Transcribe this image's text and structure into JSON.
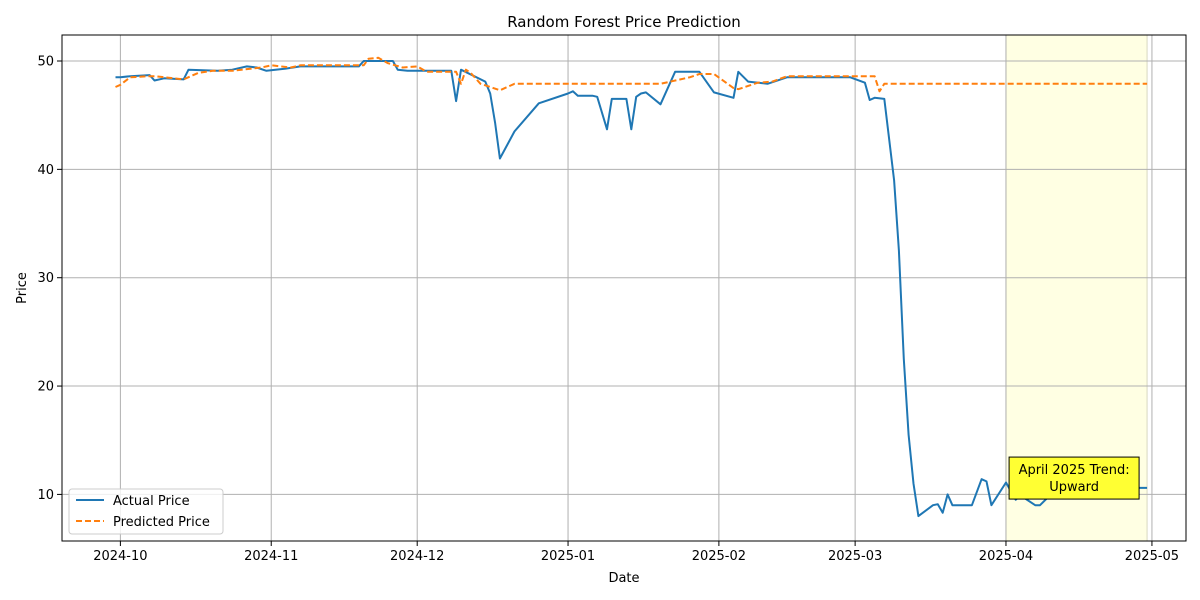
{
  "chart_data": {
    "type": "line",
    "title": "Random Forest Price Prediction",
    "xlabel": "Date",
    "ylabel": "Price",
    "xlim": [
      "2024-09-19",
      "2025-05-08"
    ],
    "ylim": [
      5.7,
      52.4
    ],
    "grid": true,
    "legend_position": "lower-left",
    "x_ticks": [
      "2024-10-01",
      "2024-11-01",
      "2024-12-01",
      "2025-01-01",
      "2025-02-01",
      "2025-03-01",
      "2025-04-01",
      "2025-05-01"
    ],
    "x_tick_labels": [
      "2024-10",
      "2024-11",
      "2024-12",
      "2025-01",
      "2025-02",
      "2025-03",
      "2025-04",
      "2025-05"
    ],
    "y_ticks": [
      10,
      20,
      30,
      40,
      50
    ],
    "y_tick_labels": [
      "10",
      "20",
      "30",
      "40",
      "50"
    ],
    "highlight": {
      "start": "2025-04-01",
      "end": "2025-04-30",
      "color": "#ffffe0"
    },
    "annotation": {
      "lines": [
        "April 2025 Trend:",
        "Upward"
      ],
      "date": "2025-04-15",
      "y": 11.6,
      "bg": "#ffff33"
    },
    "series": [
      {
        "name": "Actual Price",
        "color": "#1f77b4",
        "dash": "solid",
        "points": [
          [
            "2024-09-30",
            48.5
          ],
          [
            "2024-10-01",
            48.5
          ],
          [
            "2024-10-03",
            48.6
          ],
          [
            "2024-10-07",
            48.7
          ],
          [
            "2024-10-08",
            48.2
          ],
          [
            "2024-10-10",
            48.4
          ],
          [
            "2024-10-14",
            48.3
          ],
          [
            "2024-10-15",
            49.2
          ],
          [
            "2024-10-21",
            49.1
          ],
          [
            "2024-10-24",
            49.2
          ],
          [
            "2024-10-27",
            49.5
          ],
          [
            "2024-10-29",
            49.4
          ],
          [
            "2024-10-31",
            49.1
          ],
          [
            "2024-11-04",
            49.3
          ],
          [
            "2024-11-07",
            49.5
          ],
          [
            "2024-11-19",
            49.5
          ],
          [
            "2024-11-20",
            50.0
          ],
          [
            "2024-11-26",
            50.0
          ],
          [
            "2024-11-27",
            49.2
          ],
          [
            "2024-11-29",
            49.1
          ],
          [
            "2024-12-08",
            49.1
          ],
          [
            "2024-12-09",
            46.3
          ],
          [
            "2024-12-10",
            49.2
          ],
          [
            "2024-12-15",
            48.1
          ],
          [
            "2024-12-16",
            47.0
          ],
          [
            "2024-12-17",
            44.3
          ],
          [
            "2024-12-18",
            41.0
          ],
          [
            "2024-12-21",
            43.5
          ],
          [
            "2024-12-26",
            46.1
          ],
          [
            "2025-01-01",
            47.0
          ],
          [
            "2025-01-02",
            47.2
          ],
          [
            "2025-01-03",
            46.8
          ],
          [
            "2025-01-06",
            46.8
          ],
          [
            "2025-01-07",
            46.7
          ],
          [
            "2025-01-09",
            43.7
          ],
          [
            "2025-01-10",
            46.5
          ],
          [
            "2025-01-13",
            46.5
          ],
          [
            "2025-01-14",
            43.7
          ],
          [
            "2025-01-15",
            46.7
          ],
          [
            "2025-01-16",
            47.0
          ],
          [
            "2025-01-17",
            47.1
          ],
          [
            "2025-01-20",
            46.0
          ],
          [
            "2025-01-23",
            49.0
          ],
          [
            "2025-01-28",
            49.0
          ],
          [
            "2025-01-31",
            47.1
          ],
          [
            "2025-02-04",
            46.6
          ],
          [
            "2025-02-05",
            49.0
          ],
          [
            "2025-02-07",
            48.1
          ],
          [
            "2025-02-11",
            47.9
          ],
          [
            "2025-02-15",
            48.5
          ],
          [
            "2025-02-21",
            48.5
          ],
          [
            "2025-02-28",
            48.5
          ],
          [
            "2025-03-03",
            48.0
          ],
          [
            "2025-03-04",
            46.4
          ],
          [
            "2025-03-05",
            46.6
          ],
          [
            "2025-03-07",
            46.5
          ],
          [
            "2025-03-09",
            39.0
          ],
          [
            "2025-03-10",
            32.5
          ],
          [
            "2025-03-11",
            22.5
          ],
          [
            "2025-03-12",
            15.5
          ],
          [
            "2025-03-13",
            11.0
          ],
          [
            "2025-03-14",
            8.0
          ],
          [
            "2025-03-17",
            9.0
          ],
          [
            "2025-03-18",
            9.1
          ],
          [
            "2025-03-19",
            8.3
          ],
          [
            "2025-03-20",
            10.0
          ],
          [
            "2025-03-21",
            9.0
          ],
          [
            "2025-03-25",
            9.0
          ],
          [
            "2025-03-27",
            11.4
          ],
          [
            "2025-03-28",
            11.2
          ],
          [
            "2025-03-29",
            9.0
          ],
          [
            "2025-04-01",
            11.1
          ],
          [
            "2025-04-03",
            9.5
          ],
          [
            "2025-04-04",
            9.9
          ],
          [
            "2025-04-07",
            9.0
          ],
          [
            "2025-04-08",
            9.0
          ],
          [
            "2025-04-10",
            9.9
          ],
          [
            "2025-04-11",
            11.0
          ],
          [
            "2025-04-14",
            11.2
          ],
          [
            "2025-04-15",
            10.6
          ],
          [
            "2025-04-16",
            10.0
          ],
          [
            "2025-04-19",
            10.5
          ],
          [
            "2025-04-22",
            11.0
          ],
          [
            "2025-04-24",
            11.0
          ],
          [
            "2025-04-25",
            10.6
          ],
          [
            "2025-04-29",
            10.6
          ],
          [
            "2025-04-30",
            10.6
          ]
        ]
      },
      {
        "name": "Predicted Price",
        "color": "#ff7f0e",
        "dash": "dashed",
        "points": [
          [
            "2024-09-30",
            47.6
          ],
          [
            "2024-10-01",
            47.8
          ],
          [
            "2024-10-03",
            48.5
          ],
          [
            "2024-10-07",
            48.6
          ],
          [
            "2024-10-08",
            48.6
          ],
          [
            "2024-10-14",
            48.3
          ],
          [
            "2024-10-17",
            48.9
          ],
          [
            "2024-10-20",
            49.1
          ],
          [
            "2024-10-24",
            49.1
          ],
          [
            "2024-10-30",
            49.4
          ],
          [
            "2024-11-01",
            49.6
          ],
          [
            "2024-11-05",
            49.4
          ],
          [
            "2024-11-07",
            49.6
          ],
          [
            "2024-11-19",
            49.6
          ],
          [
            "2024-11-20",
            49.6
          ],
          [
            "2024-11-21",
            50.2
          ],
          [
            "2024-11-23",
            50.3
          ],
          [
            "2024-11-25",
            49.8
          ],
          [
            "2024-11-28",
            49.4
          ],
          [
            "2024-12-01",
            49.5
          ],
          [
            "2024-12-03",
            49.0
          ],
          [
            "2024-12-09",
            49.0
          ],
          [
            "2024-12-10",
            47.9
          ],
          [
            "2024-12-11",
            49.2
          ],
          [
            "2024-12-12",
            48.9
          ],
          [
            "2024-12-14",
            47.9
          ],
          [
            "2024-12-16",
            47.6
          ],
          [
            "2024-12-18",
            47.3
          ],
          [
            "2024-12-21",
            47.9
          ],
          [
            "2024-12-24",
            47.9
          ],
          [
            "2025-01-01",
            47.9
          ],
          [
            "2025-01-20",
            47.9
          ],
          [
            "2025-01-26",
            48.5
          ],
          [
            "2025-01-28",
            48.8
          ],
          [
            "2025-01-31",
            48.8
          ],
          [
            "2025-02-04",
            47.5
          ],
          [
            "2025-02-05",
            47.4
          ],
          [
            "2025-02-09",
            48.0
          ],
          [
            "2025-02-12",
            48.1
          ],
          [
            "2025-02-15",
            48.6
          ],
          [
            "2025-02-17",
            48.6
          ],
          [
            "2025-03-01",
            48.6
          ],
          [
            "2025-03-05",
            48.6
          ],
          [
            "2025-03-06",
            47.2
          ],
          [
            "2025-03-07",
            47.9
          ],
          [
            "2025-03-31",
            47.9
          ],
          [
            "2025-04-30",
            47.9
          ]
        ]
      }
    ]
  }
}
